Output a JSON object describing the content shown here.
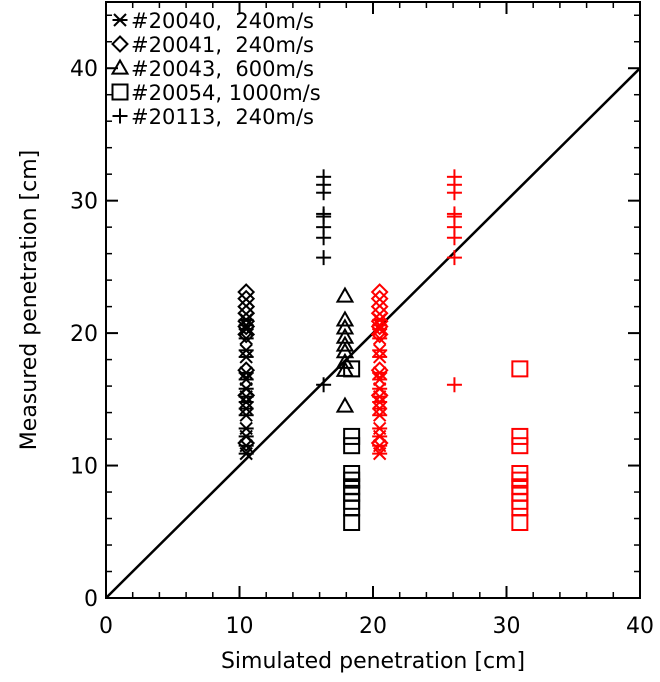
{
  "chart_data": {
    "type": "scatter",
    "xlabel": "Simulated penetration [cm]",
    "ylabel": "Measured penetration [cm]",
    "xlim": [
      0,
      40
    ],
    "ylim": [
      0,
      45
    ],
    "x_ticks": [
      0,
      10,
      20,
      30,
      40
    ],
    "y_ticks": [
      0,
      10,
      20,
      30,
      40
    ],
    "x_tick_labels": [
      "0",
      "10",
      "20",
      "30",
      "40"
    ],
    "y_tick_labels": [
      "0",
      "10",
      "20",
      "30",
      "40"
    ],
    "grid": false,
    "legend_position": "top-left",
    "reference_line": {
      "x": [
        0,
        40
      ],
      "y": [
        0,
        40
      ],
      "color": "#000000"
    },
    "colors": {
      "original": "#000000",
      "alternate": "#ff0000"
    },
    "series": [
      {
        "name": "#20040,  240m/s",
        "marker": "asterisk",
        "points": [
          {
            "x": 10.5,
            "y": 10.9,
            "color": "#000000"
          },
          {
            "x": 10.5,
            "y": 11.5,
            "color": "#000000"
          },
          {
            "x": 10.5,
            "y": 12.2,
            "color": "#000000"
          },
          {
            "x": 10.5,
            "y": 12.8,
            "color": "#000000"
          },
          {
            "x": 10.5,
            "y": 13.8,
            "color": "#000000"
          },
          {
            "x": 10.5,
            "y": 14.3,
            "color": "#000000"
          },
          {
            "x": 10.5,
            "y": 14.8,
            "color": "#000000"
          },
          {
            "x": 10.5,
            "y": 15.2,
            "color": "#000000"
          },
          {
            "x": 10.5,
            "y": 15.8,
            "color": "#000000"
          },
          {
            "x": 10.5,
            "y": 16.5,
            "color": "#000000"
          },
          {
            "x": 10.5,
            "y": 17.0,
            "color": "#000000"
          },
          {
            "x": 10.5,
            "y": 18.2,
            "color": "#000000"
          },
          {
            "x": 10.5,
            "y": 18.7,
            "color": "#000000"
          },
          {
            "x": 10.5,
            "y": 19.6,
            "color": "#000000"
          },
          {
            "x": 10.5,
            "y": 20.3,
            "color": "#000000"
          },
          {
            "x": 10.5,
            "y": 20.6,
            "color": "#000000"
          },
          {
            "x": 10.5,
            "y": 21.0,
            "color": "#000000"
          },
          {
            "x": 20.5,
            "y": 10.9,
            "color": "#ff0000"
          },
          {
            "x": 20.5,
            "y": 11.5,
            "color": "#ff0000"
          },
          {
            "x": 20.5,
            "y": 12.2,
            "color": "#ff0000"
          },
          {
            "x": 20.5,
            "y": 12.8,
            "color": "#ff0000"
          },
          {
            "x": 20.5,
            "y": 13.8,
            "color": "#ff0000"
          },
          {
            "x": 20.5,
            "y": 14.3,
            "color": "#ff0000"
          },
          {
            "x": 20.5,
            "y": 14.8,
            "color": "#ff0000"
          },
          {
            "x": 20.5,
            "y": 15.2,
            "color": "#ff0000"
          },
          {
            "x": 20.5,
            "y": 15.8,
            "color": "#ff0000"
          },
          {
            "x": 20.5,
            "y": 16.5,
            "color": "#ff0000"
          },
          {
            "x": 20.5,
            "y": 17.0,
            "color": "#ff0000"
          },
          {
            "x": 20.5,
            "y": 18.2,
            "color": "#ff0000"
          },
          {
            "x": 20.5,
            "y": 18.7,
            "color": "#ff0000"
          },
          {
            "x": 20.5,
            "y": 19.6,
            "color": "#ff0000"
          },
          {
            "x": 20.5,
            "y": 20.3,
            "color": "#ff0000"
          },
          {
            "x": 20.5,
            "y": 20.6,
            "color": "#ff0000"
          },
          {
            "x": 20.5,
            "y": 21.0,
            "color": "#ff0000"
          }
        ]
      },
      {
        "name": "#20041,  240m/s",
        "marker": "diamond",
        "points": [
          {
            "x": 10.5,
            "y": 11.7,
            "color": "#000000"
          },
          {
            "x": 10.5,
            "y": 15.3,
            "color": "#000000"
          },
          {
            "x": 10.5,
            "y": 17.2,
            "color": "#000000"
          },
          {
            "x": 10.5,
            "y": 19.9,
            "color": "#000000"
          },
          {
            "x": 10.5,
            "y": 20.5,
            "color": "#000000"
          },
          {
            "x": 10.5,
            "y": 20.9,
            "color": "#000000"
          },
          {
            "x": 10.5,
            "y": 21.5,
            "color": "#000000"
          },
          {
            "x": 10.5,
            "y": 22.0,
            "color": "#000000"
          },
          {
            "x": 10.5,
            "y": 22.6,
            "color": "#000000"
          },
          {
            "x": 10.5,
            "y": 23.1,
            "color": "#000000"
          },
          {
            "x": 20.5,
            "y": 11.7,
            "color": "#ff0000"
          },
          {
            "x": 20.5,
            "y": 15.3,
            "color": "#ff0000"
          },
          {
            "x": 20.5,
            "y": 17.2,
            "color": "#ff0000"
          },
          {
            "x": 20.5,
            "y": 19.9,
            "color": "#ff0000"
          },
          {
            "x": 20.5,
            "y": 20.5,
            "color": "#ff0000"
          },
          {
            "x": 20.5,
            "y": 20.9,
            "color": "#ff0000"
          },
          {
            "x": 20.5,
            "y": 21.5,
            "color": "#ff0000"
          },
          {
            "x": 20.5,
            "y": 22.0,
            "color": "#ff0000"
          },
          {
            "x": 20.5,
            "y": 22.6,
            "color": "#ff0000"
          },
          {
            "x": 20.5,
            "y": 23.1,
            "color": "#ff0000"
          }
        ]
      },
      {
        "name": "#20043,  600m/s",
        "marker": "triangle",
        "points": [
          {
            "x": 17.9,
            "y": 14.5,
            "color": "#000000"
          },
          {
            "x": 17.9,
            "y": 17.2,
            "color": "#000000"
          },
          {
            "x": 17.9,
            "y": 17.8,
            "color": "#000000"
          },
          {
            "x": 17.9,
            "y": 18.6,
            "color": "#000000"
          },
          {
            "x": 17.9,
            "y": 19.1,
            "color": "#000000"
          },
          {
            "x": 17.9,
            "y": 19.7,
            "color": "#000000"
          },
          {
            "x": 17.9,
            "y": 20.4,
            "color": "#000000"
          },
          {
            "x": 17.9,
            "y": 21.0,
            "color": "#000000"
          },
          {
            "x": 17.9,
            "y": 22.8,
            "color": "#000000"
          }
        ]
      },
      {
        "name": "#20054, 1000m/s",
        "marker": "square",
        "points": [
          {
            "x": 18.4,
            "y": 17.3,
            "color": "#000000"
          },
          {
            "x": 18.4,
            "y": 12.2,
            "color": "#000000"
          },
          {
            "x": 18.4,
            "y": 11.5,
            "color": "#000000"
          },
          {
            "x": 18.4,
            "y": 9.4,
            "color": "#000000"
          },
          {
            "x": 18.4,
            "y": 8.9,
            "color": "#000000"
          },
          {
            "x": 18.4,
            "y": 8.4,
            "color": "#000000"
          },
          {
            "x": 18.4,
            "y": 7.9,
            "color": "#000000"
          },
          {
            "x": 18.4,
            "y": 7.3,
            "color": "#000000"
          },
          {
            "x": 18.4,
            "y": 6.8,
            "color": "#000000"
          },
          {
            "x": 18.4,
            "y": 5.7,
            "color": "#000000"
          },
          {
            "x": 31.0,
            "y": 17.3,
            "color": "#ff0000"
          },
          {
            "x": 31.0,
            "y": 12.2,
            "color": "#ff0000"
          },
          {
            "x": 31.0,
            "y": 11.5,
            "color": "#ff0000"
          },
          {
            "x": 31.0,
            "y": 9.4,
            "color": "#ff0000"
          },
          {
            "x": 31.0,
            "y": 8.9,
            "color": "#ff0000"
          },
          {
            "x": 31.0,
            "y": 8.4,
            "color": "#ff0000"
          },
          {
            "x": 31.0,
            "y": 7.9,
            "color": "#ff0000"
          },
          {
            "x": 31.0,
            "y": 7.3,
            "color": "#ff0000"
          },
          {
            "x": 31.0,
            "y": 6.8,
            "color": "#ff0000"
          },
          {
            "x": 31.0,
            "y": 5.7,
            "color": "#ff0000"
          }
        ]
      },
      {
        "name": "#20113,  240m/s",
        "marker": "plus",
        "points": [
          {
            "x": 16.3,
            "y": 16.1,
            "color": "#000000"
          },
          {
            "x": 16.3,
            "y": 25.7,
            "color": "#000000"
          },
          {
            "x": 16.3,
            "y": 27.2,
            "color": "#000000"
          },
          {
            "x": 16.3,
            "y": 28.0,
            "color": "#000000"
          },
          {
            "x": 16.3,
            "y": 28.8,
            "color": "#000000"
          },
          {
            "x": 16.3,
            "y": 29.0,
            "color": "#000000"
          },
          {
            "x": 16.3,
            "y": 30.6,
            "color": "#000000"
          },
          {
            "x": 16.3,
            "y": 31.2,
            "color": "#000000"
          },
          {
            "x": 16.3,
            "y": 31.8,
            "color": "#000000"
          },
          {
            "x": 26.1,
            "y": 16.1,
            "color": "#ff0000"
          },
          {
            "x": 26.1,
            "y": 25.7,
            "color": "#ff0000"
          },
          {
            "x": 26.1,
            "y": 27.2,
            "color": "#ff0000"
          },
          {
            "x": 26.1,
            "y": 28.0,
            "color": "#ff0000"
          },
          {
            "x": 26.1,
            "y": 28.8,
            "color": "#ff0000"
          },
          {
            "x": 26.1,
            "y": 29.0,
            "color": "#ff0000"
          },
          {
            "x": 26.1,
            "y": 30.6,
            "color": "#ff0000"
          },
          {
            "x": 26.1,
            "y": 31.2,
            "color": "#ff0000"
          },
          {
            "x": 26.1,
            "y": 31.8,
            "color": "#ff0000"
          }
        ]
      }
    ]
  }
}
